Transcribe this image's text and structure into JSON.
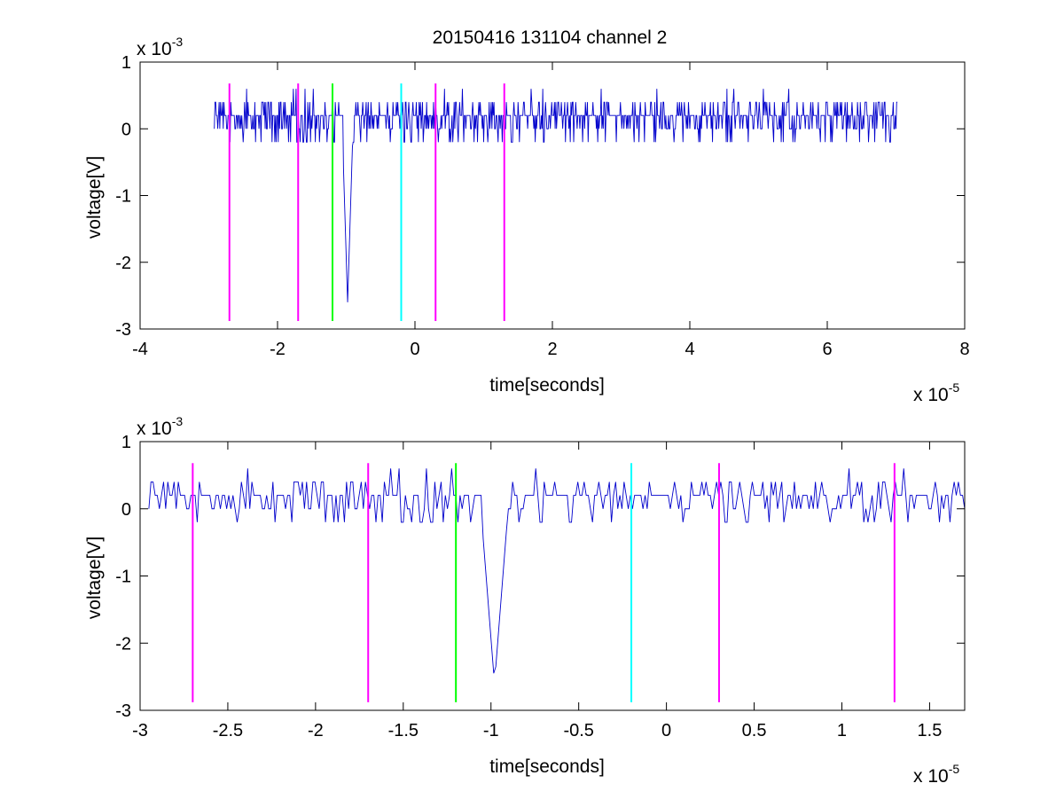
{
  "figure": {
    "title": "20150416 131104 channel 2",
    "background": "#ffffff",
    "trace_color": "#0000cc"
  },
  "chart_data": [
    {
      "type": "line",
      "title": "20150416 131104 channel 2",
      "xlabel": "time[seconds]",
      "ylabel": "voltage[V]",
      "x_exponent_label": "x 10",
      "x_exponent": "-5",
      "y_exponent_label": "x 10",
      "y_exponent": "-3",
      "xlim": [
        -4,
        8
      ],
      "ylim": [
        -3,
        1
      ],
      "x_ticks": [
        -4,
        -2,
        0,
        2,
        4,
        6,
        8
      ],
      "x_tick_labels": [
        "-4",
        "-2",
        "0",
        "2",
        "4",
        "6",
        "8"
      ],
      "y_ticks": [
        -3,
        -2,
        -1,
        0,
        1
      ],
      "y_tick_labels": [
        "-3",
        "-2",
        "-1",
        "0",
        "1"
      ],
      "grid": false,
      "series": [
        {
          "type": "line",
          "color": "#0000cc",
          "x_range": [
            -2.92,
            7.02
          ],
          "baseline": 0.05,
          "noise_levels": [
            -0.2,
            0,
            0.2,
            0.4
          ],
          "spike": {
            "x": -0.98,
            "y": -2.6
          }
        }
      ],
      "markers": [
        {
          "x": -2.7,
          "color": "#ff00ff",
          "y_top": 0.68,
          "y_bottom": -2.88
        },
        {
          "x": -1.7,
          "color": "#ff00ff",
          "y_top": 0.68,
          "y_bottom": -2.88
        },
        {
          "x": -1.2,
          "color": "#00ff00",
          "y_top": 0.68,
          "y_bottom": -2.88
        },
        {
          "x": -0.2,
          "color": "#00ffff",
          "y_top": 0.68,
          "y_bottom": -2.88
        },
        {
          "x": 0.3,
          "color": "#ff00ff",
          "y_top": 0.68,
          "y_bottom": -2.88
        },
        {
          "x": 1.3,
          "color": "#ff00ff",
          "y_top": 0.68,
          "y_bottom": -2.88
        }
      ]
    },
    {
      "type": "line",
      "title": "",
      "xlabel": "time[seconds]",
      "ylabel": "voltage[V]",
      "x_exponent_label": "x 10",
      "x_exponent": "-5",
      "y_exponent_label": "x 10",
      "y_exponent": "-3",
      "xlim": [
        -3,
        1.7
      ],
      "ylim": [
        -3,
        1
      ],
      "x_ticks": [
        -3,
        -2.5,
        -2,
        -1.5,
        -1,
        -0.5,
        0,
        0.5,
        1,
        1.5
      ],
      "x_tick_labels": [
        "-3",
        "-2.5",
        "-2",
        "-1.5",
        "-1",
        "-0.5",
        "0",
        "0.5",
        "1",
        "1.5"
      ],
      "y_ticks": [
        -3,
        -2,
        -1,
        0,
        1
      ],
      "y_tick_labels": [
        "-3",
        "-2",
        "-1",
        "0",
        "1"
      ],
      "grid": false,
      "series": [
        {
          "type": "line",
          "color": "#0000cc",
          "x_range": [
            -2.95,
            1.7
          ],
          "baseline": 0.05,
          "noise_levels": [
            -0.2,
            0,
            0.2,
            0.4
          ],
          "spike": {
            "x": -0.98,
            "y": -2.6
          }
        }
      ],
      "markers": [
        {
          "x": -2.7,
          "color": "#ff00ff",
          "y_top": 0.68,
          "y_bottom": -2.88
        },
        {
          "x": -1.7,
          "color": "#ff00ff",
          "y_top": 0.68,
          "y_bottom": -2.88
        },
        {
          "x": -1.2,
          "color": "#00ff00",
          "y_top": 0.68,
          "y_bottom": -2.88
        },
        {
          "x": -0.2,
          "color": "#00ffff",
          "y_top": 0.68,
          "y_bottom": -2.88
        },
        {
          "x": 0.3,
          "color": "#ff00ff",
          "y_top": 0.68,
          "y_bottom": -2.88
        },
        {
          "x": 1.3,
          "color": "#ff00ff",
          "y_top": 0.68,
          "y_bottom": -2.88
        }
      ]
    }
  ]
}
